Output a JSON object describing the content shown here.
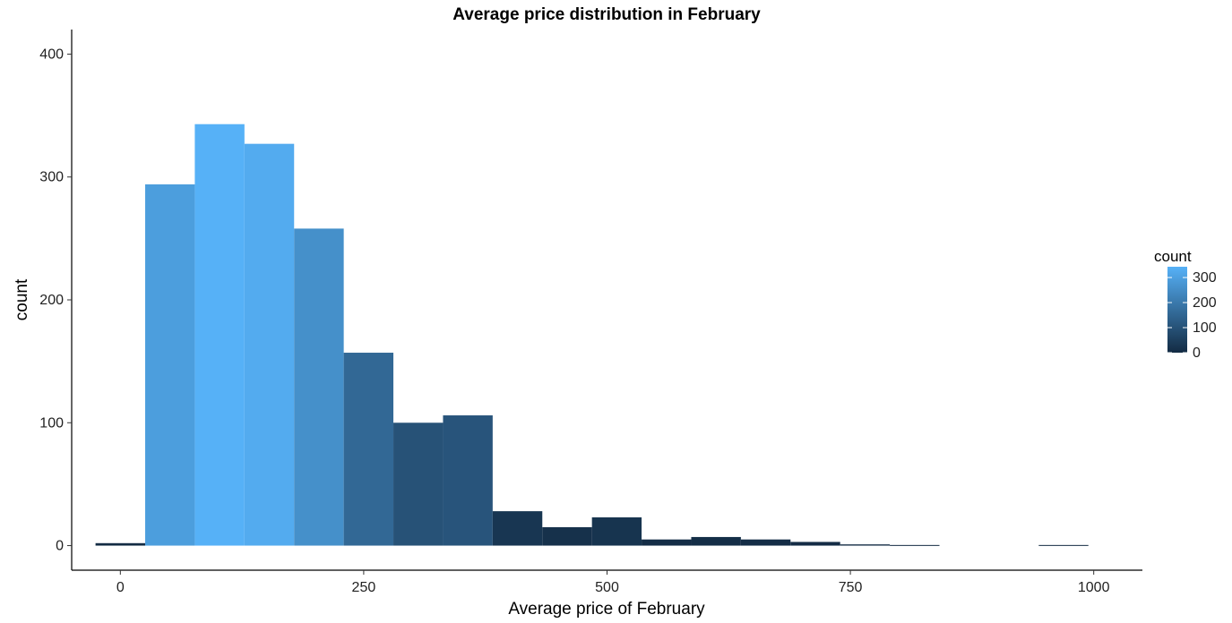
{
  "chart_data": {
    "type": "bar",
    "title": "Average price distribution in February",
    "xlabel": "Average price of February",
    "ylabel": "count",
    "xlim": [
      -50,
      1050
    ],
    "ylim": [
      -20,
      420
    ],
    "x_ticks": [
      0,
      250,
      500,
      750,
      1000
    ],
    "y_ticks": [
      0,
      100,
      200,
      300,
      400
    ],
    "bin_width": 51,
    "bins": [
      {
        "x": 0,
        "count": 2
      },
      {
        "x": 51,
        "count": 294
      },
      {
        "x": 102,
        "count": 343
      },
      {
        "x": 153,
        "count": 327
      },
      {
        "x": 204,
        "count": 258
      },
      {
        "x": 255,
        "count": 157
      },
      {
        "x": 306,
        "count": 100
      },
      {
        "x": 357,
        "count": 106
      },
      {
        "x": 408,
        "count": 28
      },
      {
        "x": 459,
        "count": 15
      },
      {
        "x": 510,
        "count": 23
      },
      {
        "x": 561,
        "count": 5
      },
      {
        "x": 612,
        "count": 7
      },
      {
        "x": 663,
        "count": 5
      },
      {
        "x": 714,
        "count": 3
      },
      {
        "x": 765,
        "count": 1
      },
      {
        "x": 816,
        "count": 0.5
      },
      {
        "x": 969,
        "count": 0.5
      }
    ],
    "legend": {
      "title": "count",
      "placement": "right",
      "breaks": [
        0,
        100,
        200,
        300
      ],
      "low_color": "#132B43",
      "high_color": "#56B1F7"
    },
    "grid": false
  }
}
